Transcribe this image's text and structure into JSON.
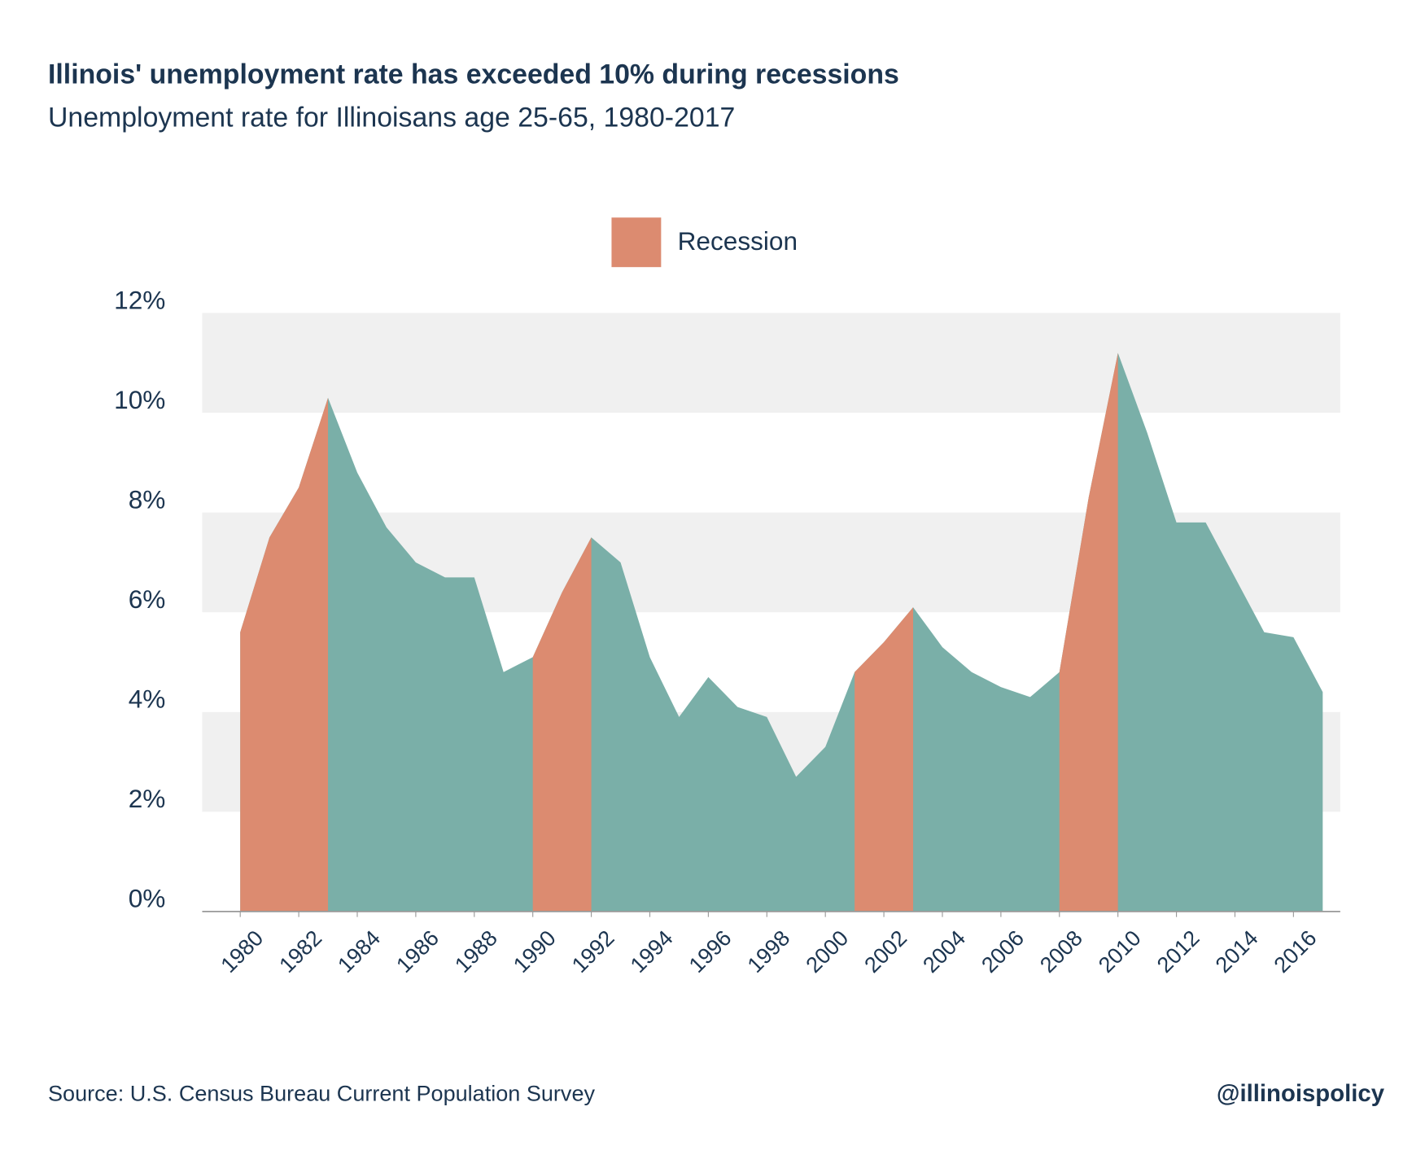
{
  "chart_data": {
    "type": "area",
    "title": "Illinois' unemployment rate has exceeded 10% during recessions",
    "subtitle": "Unemployment rate for Illinoisans age 25-65, 1980-2017",
    "source": "Source: U.S. Census Bureau Current Population Survey",
    "credit": "@illinoispolicy",
    "x": [
      1980,
      1981,
      1982,
      1983,
      1984,
      1985,
      1986,
      1987,
      1988,
      1989,
      1990,
      1991,
      1992,
      1993,
      1994,
      1995,
      1996,
      1997,
      1998,
      1999,
      2000,
      2001,
      2002,
      2003,
      2004,
      2005,
      2006,
      2007,
      2008,
      2009,
      2010,
      2011,
      2012,
      2013,
      2014,
      2015,
      2016,
      2017
    ],
    "series": [
      {
        "color": "#7aafa8",
        "values": [
          5.6,
          7.5,
          8.5,
          10.3,
          8.8,
          7.7,
          7.0,
          6.7,
          6.7,
          4.8,
          5.1,
          6.4,
          7.5,
          7.0,
          5.1,
          3.9,
          4.7,
          4.1,
          3.9,
          2.7,
          3.3,
          4.8,
          5.4,
          6.1,
          5.3,
          4.8,
          4.5,
          4.3,
          4.8,
          8.3,
          11.2,
          9.6,
          7.8,
          7.8,
          6.7,
          5.6,
          5.5,
          4.4
        ]
      }
    ],
    "recessions": {
      "name": "Recession",
      "color": "#dc8b70",
      "spans": [
        [
          1980,
          1983
        ],
        [
          1990,
          1992
        ],
        [
          2001,
          2003
        ],
        [
          2008,
          2010
        ]
      ]
    },
    "xlim": [
      1978.7,
      2017.6
    ],
    "xticks": [
      1980,
      1982,
      1984,
      1986,
      1988,
      1990,
      1992,
      1994,
      1996,
      1998,
      2000,
      2002,
      2004,
      2006,
      2008,
      2010,
      2012,
      2014,
      2016
    ],
    "ylim": [
      0,
      12
    ],
    "yticks": [
      {
        "value": 0,
        "label": "0%"
      },
      {
        "value": 2,
        "label": "2%"
      },
      {
        "value": 4,
        "label": "4%"
      },
      {
        "value": 6,
        "label": "6%"
      },
      {
        "value": 8,
        "label": "8%"
      },
      {
        "value": 10,
        "label": "10%"
      },
      {
        "value": 12,
        "label": "12%"
      }
    ],
    "grid": "bands"
  }
}
